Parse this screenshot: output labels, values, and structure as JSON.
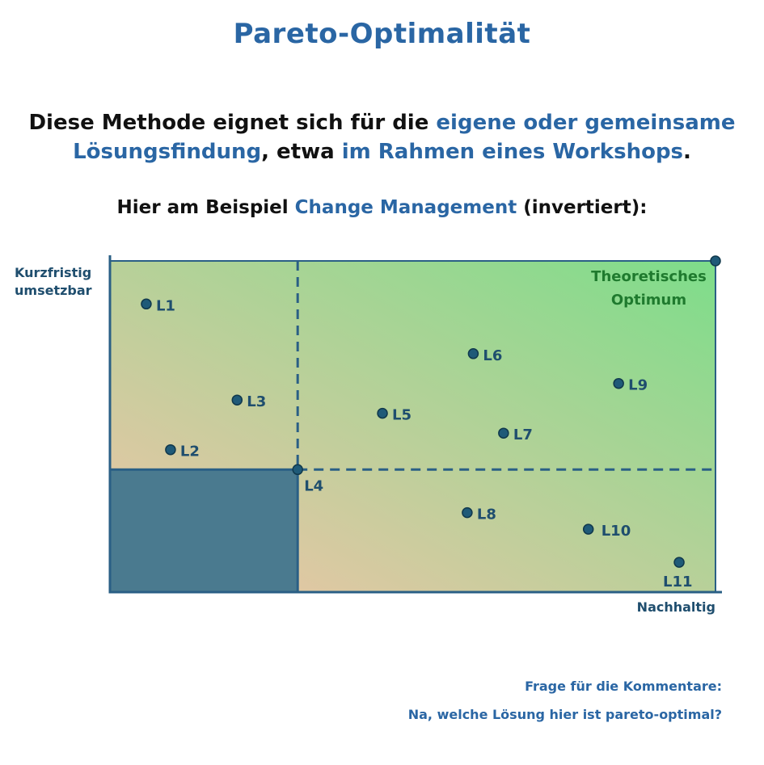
{
  "page": {
    "title": "Pareto-Optimalität",
    "intro_1": "Diese Methode eignet sich für die ",
    "intro_2": "eigene oder gemeinsame Lösungsfindung",
    "intro_3": ", etwa ",
    "intro_4": "im Rahmen eines Workshops",
    "intro_5": ".",
    "sub_1": "Hier am Beispiel ",
    "sub_2": "Change Management",
    "sub_3": " (invertiert):",
    "footer_question": "Frage für die Kommentare:",
    "footer_answer": "Na, welche Lösung hier ist pareto-optimal?"
  },
  "colors": {
    "accent": "#2a66a4",
    "axis": "#2a5f85",
    "point": "#1f5a78",
    "dominated_box": "#4a7a8f",
    "gradient_low": "#f2c4a8",
    "gradient_high": "#7ddd8a"
  },
  "chart_data": {
    "type": "scatter",
    "ylabel": "Kurzfristig umsetzbar",
    "xlabel": "Nachhaltig",
    "xlim": [
      0,
      100
    ],
    "ylim": [
      0,
      100
    ],
    "optimum_label": "Theoretisches Optimum",
    "optimum_point": {
      "x": 100,
      "y": 100
    },
    "reference_point": "L4",
    "points": [
      {
        "label": "L1",
        "x": 6,
        "y": 87
      },
      {
        "label": "L2",
        "x": 10,
        "y": 43
      },
      {
        "label": "L3",
        "x": 21,
        "y": 58
      },
      {
        "label": "L4",
        "x": 31,
        "y": 37
      },
      {
        "label": "L5",
        "x": 45,
        "y": 54
      },
      {
        "label": "L6",
        "x": 60,
        "y": 72
      },
      {
        "label": "L7",
        "x": 65,
        "y": 48
      },
      {
        "label": "L8",
        "x": 59,
        "y": 24
      },
      {
        "label": "L9",
        "x": 84,
        "y": 63
      },
      {
        "label": "L10",
        "x": 79,
        "y": 19
      },
      {
        "label": "L11",
        "x": 94,
        "y": 9
      }
    ]
  }
}
